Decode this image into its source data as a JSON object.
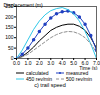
{
  "chart_data": {
    "type": "line",
    "title": "c) trail speed",
    "x_label": "Time (s)",
    "y_label": "Displacement (m)",
    "x": [
      0,
      0.5,
      1,
      1.5,
      2,
      2.5,
      3,
      3.5,
      4,
      4.5,
      5,
      5.5,
      6,
      6.5,
      7
    ],
    "series": [
      {
        "name": "calculated",
        "color": "#000000",
        "line_style": "solid",
        "values": [
          0,
          10,
          30,
          55,
          85,
          110,
          135,
          150,
          160,
          165,
          165,
          155,
          135,
          100,
          50
        ]
      },
      {
        "name": "measured",
        "color": "#2040c0",
        "line_style": "solid",
        "marker": "circle",
        "values": [
          0,
          20,
          50,
          90,
          130,
          165,
          195,
          215,
          225,
          228,
          220,
          200,
          165,
          110,
          40
        ]
      },
      {
        "name": "450 rev/min",
        "color": "#30c8e8",
        "line_style": "solid",
        "values": [
          0,
          40,
          90,
          140,
          180,
          210,
          230,
          240,
          245,
          235,
          215,
          180,
          130,
          70,
          0
        ]
      },
      {
        "name": "500 rev/min",
        "color": "#909090",
        "line_style": "dashed",
        "values": [
          0,
          8,
          20,
          40,
          60,
          80,
          100,
          115,
          125,
          130,
          128,
          118,
          100,
          70,
          30
        ]
      }
    ],
    "xlim": [
      0,
      7
    ],
    "xticks": [
      0,
      1,
      2,
      3,
      4,
      5,
      6,
      7
    ],
    "ylim": [
      0,
      250
    ],
    "yticks": [
      0,
      50,
      100,
      150,
      200,
      250
    ],
    "grid": false,
    "legend": "bottom"
  }
}
